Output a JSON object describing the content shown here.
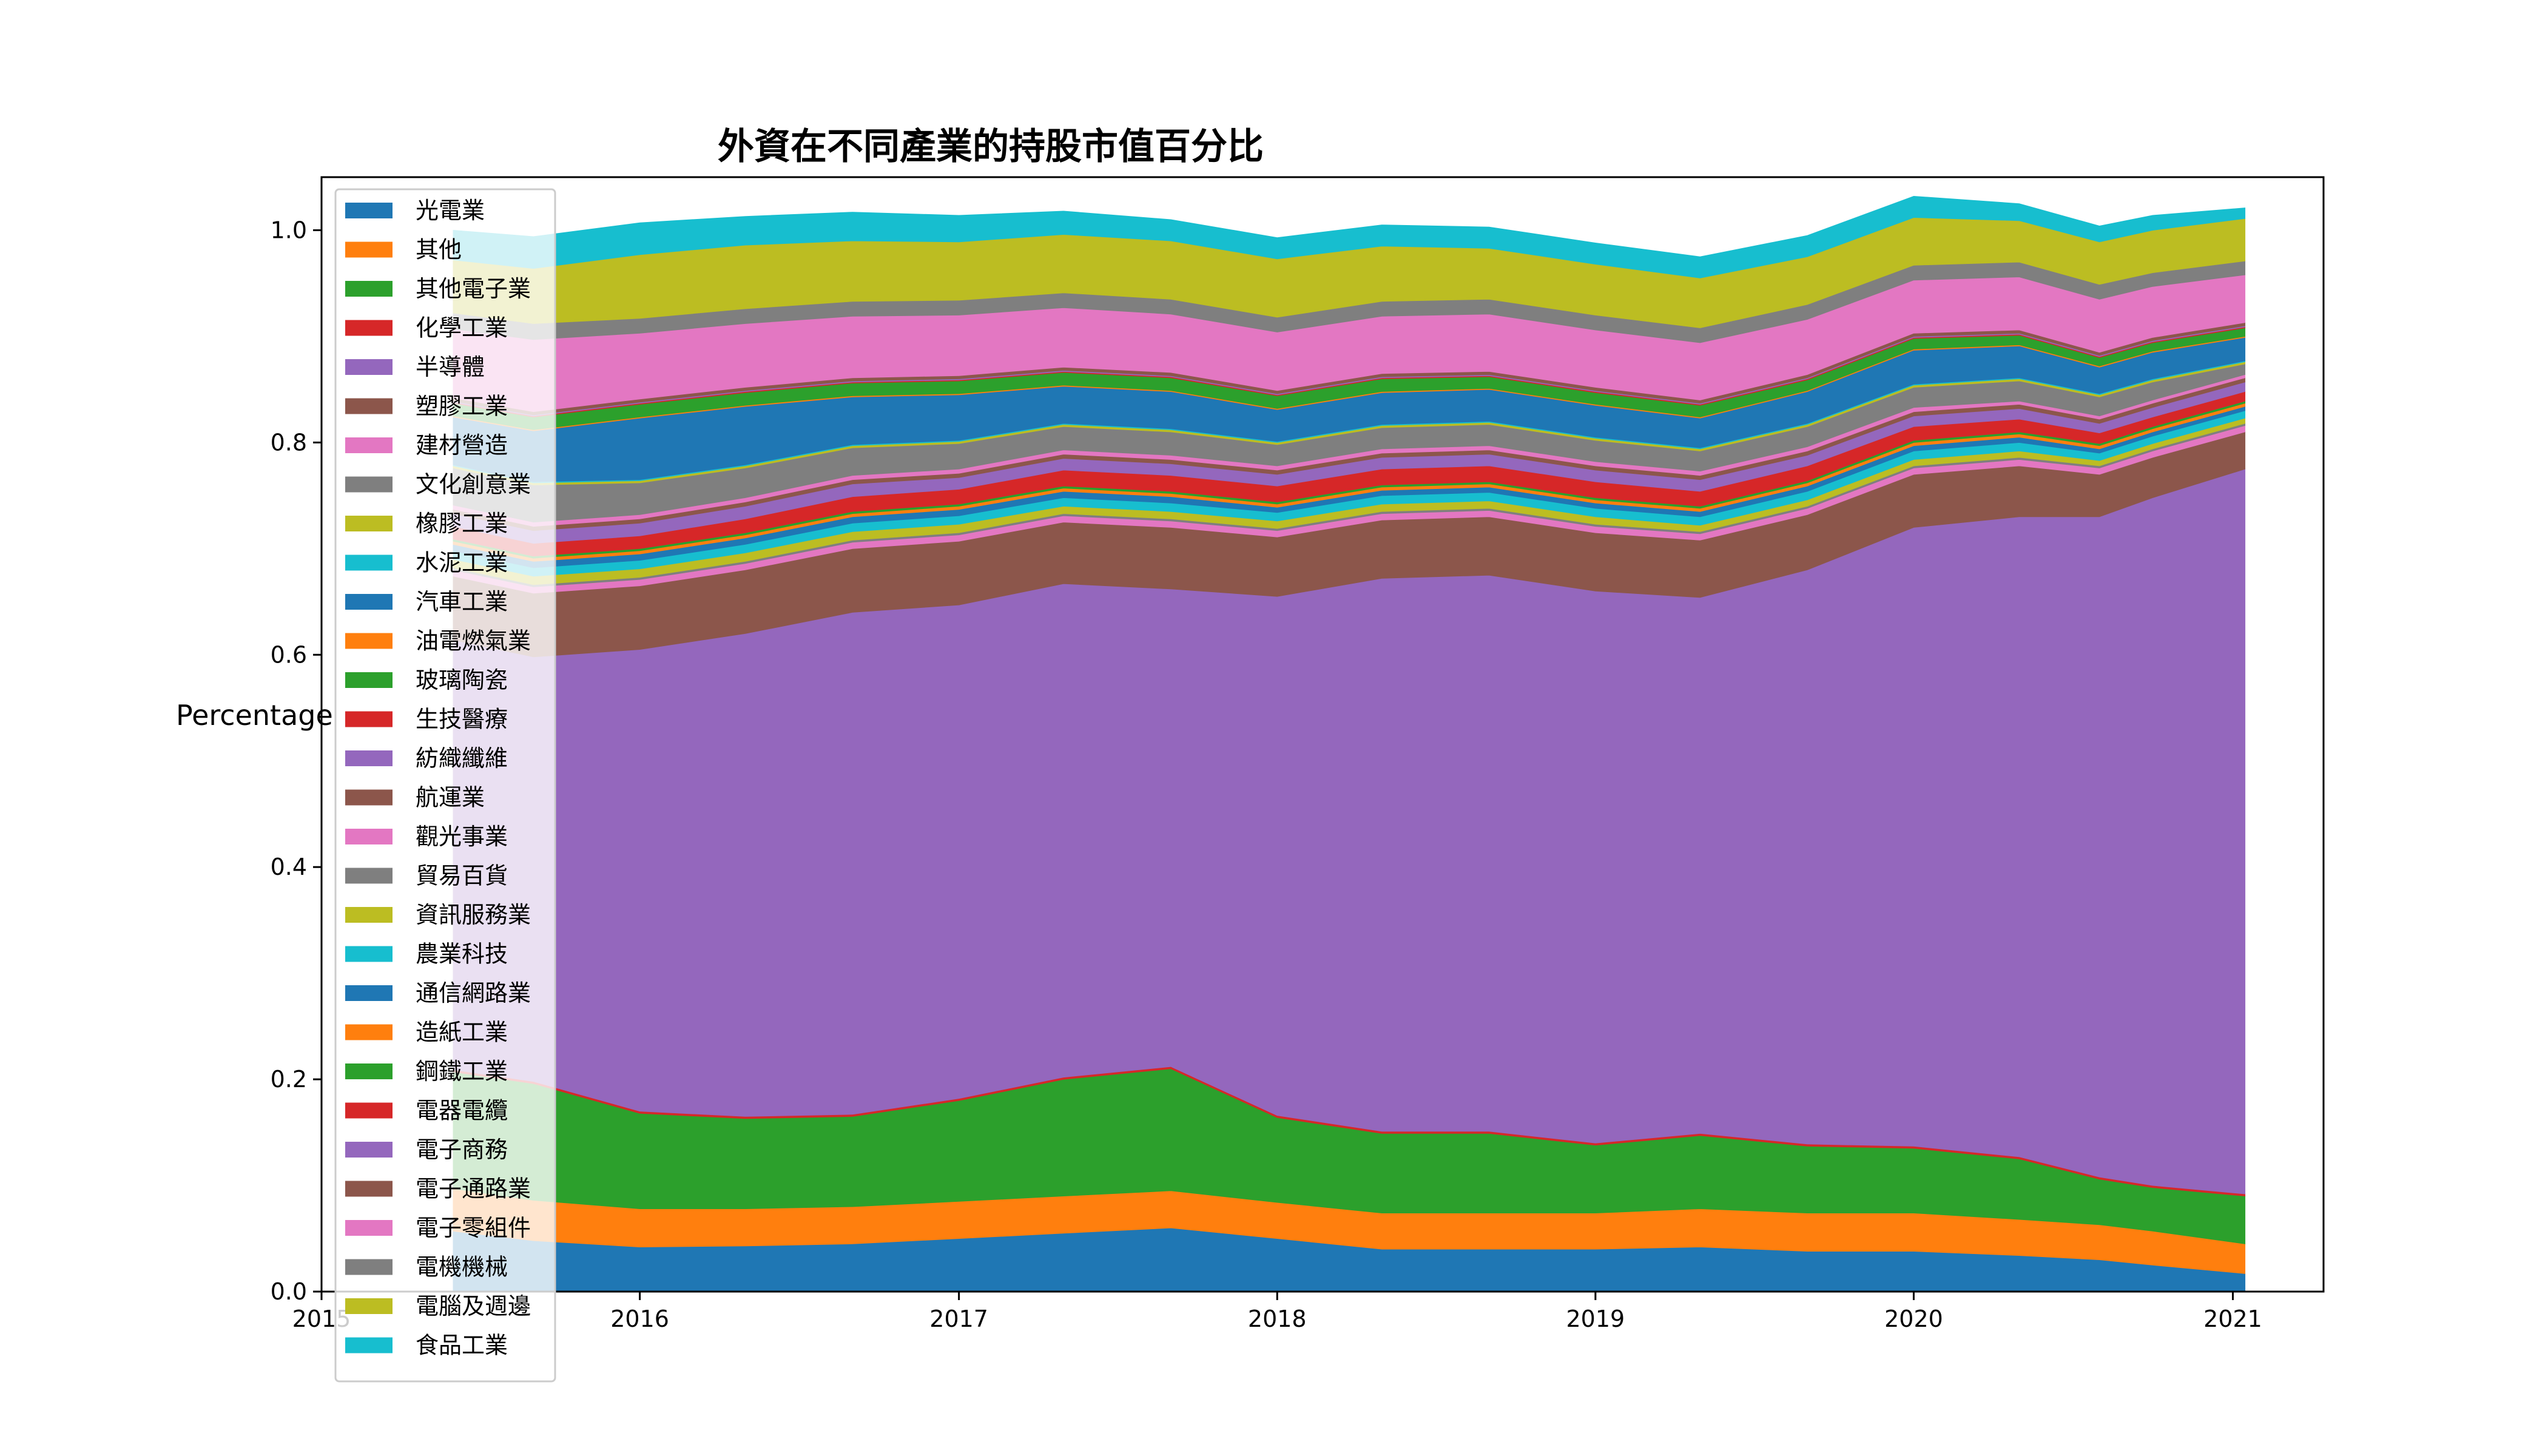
{
  "chart_data": {
    "type": "area",
    "stacked": true,
    "title": "外資在不同產業的持股市值百分比",
    "xlabel": "",
    "ylabel": "Percentage",
    "x": [
      "2015-06-01",
      "2015-09-01",
      "2016-01-01",
      "2016-05-01",
      "2016-09-01",
      "2017-01-01",
      "2017-05-01",
      "2017-09-01",
      "2018-01-01",
      "2018-05-01",
      "2018-09-01",
      "2019-01-01",
      "2019-05-01",
      "2019-09-01",
      "2020-01-01",
      "2020-05-01",
      "2020-08-01",
      "2020-10-01",
      "2021-01-15"
    ],
    "xlim": [
      "2015-01-01",
      "2021-04-15"
    ],
    "ylim": [
      0,
      1.05
    ],
    "xticks": [
      "2015",
      "2016",
      "2017",
      "2018",
      "2019",
      "2020",
      "2021"
    ],
    "yticks": [
      "0.0",
      "0.2",
      "0.4",
      "0.6",
      "0.8",
      "1.0"
    ],
    "legend_position": "upper-left",
    "series": [
      {
        "name": "光電業",
        "color": "#1f77b4",
        "values": [
          0.057,
          0.048,
          0.042,
          0.043,
          0.045,
          0.05,
          0.055,
          0.06,
          0.05,
          0.04,
          0.04,
          0.04,
          0.042,
          0.038,
          0.038,
          0.034,
          0.03,
          0.025,
          0.017
        ]
      },
      {
        "name": "其他",
        "color": "#ff7f0e",
        "values": [
          0.04,
          0.038,
          0.036,
          0.035,
          0.035,
          0.035,
          0.035,
          0.035,
          0.034,
          0.034,
          0.034,
          0.034,
          0.036,
          0.036,
          0.036,
          0.034,
          0.033,
          0.032,
          0.028
        ]
      },
      {
        "name": "其他電子業",
        "color": "#2ca02c",
        "values": [
          0.11,
          0.11,
          0.09,
          0.085,
          0.085,
          0.095,
          0.11,
          0.115,
          0.08,
          0.075,
          0.075,
          0.064,
          0.069,
          0.063,
          0.061,
          0.057,
          0.043,
          0.041,
          0.045
        ]
      },
      {
        "name": "化學工業",
        "color": "#d62728",
        "values": [
          0.002,
          0.002,
          0.002,
          0.002,
          0.002,
          0.002,
          0.002,
          0.002,
          0.002,
          0.002,
          0.002,
          0.002,
          0.002,
          0.002,
          0.002,
          0.002,
          0.002,
          0.002,
          0.002
        ]
      },
      {
        "name": "半導體",
        "color": "#9467bd",
        "values": [
          0.405,
          0.4,
          0.435,
          0.455,
          0.473,
          0.465,
          0.465,
          0.45,
          0.489,
          0.521,
          0.524,
          0.52,
          0.505,
          0.541,
          0.583,
          0.603,
          0.622,
          0.648,
          0.683
        ]
      },
      {
        "name": "塑膠工業",
        "color": "#8c564b",
        "values": [
          0.06,
          0.06,
          0.06,
          0.06,
          0.06,
          0.06,
          0.058,
          0.058,
          0.056,
          0.055,
          0.055,
          0.055,
          0.054,
          0.052,
          0.05,
          0.048,
          0.04,
          0.038,
          0.035
        ]
      },
      {
        "name": "建材營造",
        "color": "#e377c2",
        "values": [
          0.006,
          0.006,
          0.006,
          0.006,
          0.006,
          0.006,
          0.006,
          0.006,
          0.006,
          0.006,
          0.006,
          0.006,
          0.006,
          0.006,
          0.006,
          0.006,
          0.006,
          0.006,
          0.006
        ]
      },
      {
        "name": "文化創意業",
        "color": "#7f7f7f",
        "values": [
          0.002,
          0.002,
          0.002,
          0.002,
          0.002,
          0.002,
          0.002,
          0.002,
          0.002,
          0.002,
          0.002,
          0.002,
          0.002,
          0.002,
          0.002,
          0.002,
          0.002,
          0.002,
          0.002
        ]
      },
      {
        "name": "橡膠工業",
        "color": "#bcbd22",
        "values": [
          0.008,
          0.008,
          0.008,
          0.008,
          0.008,
          0.008,
          0.007,
          0.007,
          0.007,
          0.007,
          0.007,
          0.007,
          0.006,
          0.006,
          0.006,
          0.006,
          0.005,
          0.005,
          0.005
        ]
      },
      {
        "name": "水泥工業",
        "color": "#17becf",
        "values": [
          0.008,
          0.008,
          0.008,
          0.008,
          0.008,
          0.008,
          0.008,
          0.008,
          0.008,
          0.008,
          0.008,
          0.008,
          0.008,
          0.008,
          0.008,
          0.008,
          0.007,
          0.007,
          0.007
        ]
      },
      {
        "name": "汽車工業",
        "color": "#1f77b4",
        "values": [
          0.006,
          0.006,
          0.006,
          0.006,
          0.006,
          0.006,
          0.006,
          0.006,
          0.005,
          0.005,
          0.005,
          0.005,
          0.005,
          0.005,
          0.005,
          0.005,
          0.004,
          0.004,
          0.004
        ]
      },
      {
        "name": "油電燃氣業",
        "color": "#ff7f0e",
        "values": [
          0.003,
          0.003,
          0.003,
          0.003,
          0.003,
          0.003,
          0.003,
          0.003,
          0.003,
          0.003,
          0.003,
          0.003,
          0.003,
          0.003,
          0.003,
          0.003,
          0.003,
          0.003,
          0.003
        ]
      },
      {
        "name": "玻璃陶瓷",
        "color": "#2ca02c",
        "values": [
          0.002,
          0.002,
          0.002,
          0.002,
          0.002,
          0.002,
          0.002,
          0.002,
          0.002,
          0.002,
          0.002,
          0.002,
          0.002,
          0.002,
          0.002,
          0.002,
          0.002,
          0.002,
          0.002
        ]
      },
      {
        "name": "生技醫療",
        "color": "#d62728",
        "values": [
          0.012,
          0.012,
          0.012,
          0.013,
          0.014,
          0.014,
          0.015,
          0.015,
          0.015,
          0.015,
          0.015,
          0.015,
          0.014,
          0.014,
          0.013,
          0.012,
          0.01,
          0.009,
          0.009
        ]
      },
      {
        "name": "紡織纖維",
        "color": "#9467bd",
        "values": [
          0.012,
          0.012,
          0.012,
          0.012,
          0.012,
          0.011,
          0.011,
          0.011,
          0.011,
          0.011,
          0.011,
          0.011,
          0.011,
          0.01,
          0.01,
          0.01,
          0.009,
          0.009,
          0.009
        ]
      },
      {
        "name": "航運業",
        "color": "#8c564b",
        "values": [
          0.004,
          0.004,
          0.004,
          0.004,
          0.004,
          0.004,
          0.004,
          0.004,
          0.004,
          0.004,
          0.004,
          0.004,
          0.004,
          0.004,
          0.004,
          0.004,
          0.004,
          0.004,
          0.004
        ]
      },
      {
        "name": "觀光事業",
        "color": "#e377c2",
        "values": [
          0.004,
          0.004,
          0.004,
          0.004,
          0.004,
          0.004,
          0.004,
          0.004,
          0.004,
          0.004,
          0.004,
          0.004,
          0.004,
          0.004,
          0.004,
          0.003,
          0.003,
          0.003,
          0.003
        ]
      },
      {
        "name": "貿易百貨",
        "color": "#7f7f7f",
        "values": [
          0.035,
          0.035,
          0.03,
          0.028,
          0.026,
          0.024,
          0.022,
          0.022,
          0.02,
          0.02,
          0.02,
          0.02,
          0.019,
          0.019,
          0.019,
          0.019,
          0.018,
          0.017,
          0.01
        ]
      },
      {
        "name": "資訊服務業",
        "color": "#bcbd22",
        "values": [
          0.002,
          0.002,
          0.002,
          0.002,
          0.002,
          0.002,
          0.002,
          0.002,
          0.002,
          0.002,
          0.002,
          0.002,
          0.002,
          0.002,
          0.002,
          0.002,
          0.002,
          0.002,
          0.002
        ]
      },
      {
        "name": "農業科技",
        "color": "#17becf",
        "values": [
          0.001,
          0.001,
          0.001,
          0.001,
          0.001,
          0.001,
          0.001,
          0.001,
          0.001,
          0.001,
          0.001,
          0.001,
          0.001,
          0.001,
          0.001,
          0.001,
          0.001,
          0.001,
          0.001
        ]
      },
      {
        "name": "通信網路業",
        "color": "#1f77b4",
        "values": [
          0.045,
          0.048,
          0.058,
          0.055,
          0.045,
          0.043,
          0.035,
          0.035,
          0.03,
          0.03,
          0.03,
          0.03,
          0.028,
          0.03,
          0.032,
          0.03,
          0.025,
          0.025,
          0.022
        ]
      },
      {
        "name": "造紙工業",
        "color": "#ff7f0e",
        "values": [
          0.001,
          0.001,
          0.001,
          0.001,
          0.001,
          0.001,
          0.001,
          0.001,
          0.001,
          0.001,
          0.001,
          0.001,
          0.001,
          0.001,
          0.001,
          0.001,
          0.001,
          0.001,
          0.001
        ]
      },
      {
        "name": "鋼鐵工業",
        "color": "#2ca02c",
        "values": [
          0.012,
          0.012,
          0.012,
          0.012,
          0.012,
          0.012,
          0.012,
          0.012,
          0.012,
          0.012,
          0.011,
          0.011,
          0.011,
          0.01,
          0.01,
          0.009,
          0.008,
          0.008,
          0.008
        ]
      },
      {
        "name": "電器電纜",
        "color": "#d62728",
        "values": [
          0.001,
          0.001,
          0.001,
          0.001,
          0.001,
          0.001,
          0.001,
          0.001,
          0.001,
          0.001,
          0.001,
          0.001,
          0.001,
          0.001,
          0.001,
          0.001,
          0.001,
          0.001,
          0.001
        ]
      },
      {
        "name": "電子商務",
        "color": "#9467bd",
        "values": [
          0.001,
          0.001,
          0.001,
          0.001,
          0.001,
          0.001,
          0.001,
          0.001,
          0.001,
          0.001,
          0.001,
          0.001,
          0.001,
          0.001,
          0.001,
          0.001,
          0.001,
          0.001,
          0.001
        ]
      },
      {
        "name": "電子通路業",
        "color": "#8c564b",
        "values": [
          0.003,
          0.003,
          0.003,
          0.003,
          0.003,
          0.003,
          0.003,
          0.003,
          0.003,
          0.003,
          0.003,
          0.003,
          0.003,
          0.003,
          0.003,
          0.003,
          0.003,
          0.003,
          0.003
        ]
      },
      {
        "name": "電子零組件",
        "color": "#e377c2",
        "values": [
          0.065,
          0.068,
          0.062,
          0.06,
          0.058,
          0.057,
          0.056,
          0.055,
          0.055,
          0.054,
          0.054,
          0.054,
          0.054,
          0.052,
          0.05,
          0.05,
          0.05,
          0.048,
          0.045
        ]
      },
      {
        "name": "電機機械",
        "color": "#7f7f7f",
        "values": [
          0.015,
          0.015,
          0.014,
          0.014,
          0.014,
          0.014,
          0.014,
          0.014,
          0.014,
          0.014,
          0.014,
          0.014,
          0.014,
          0.014,
          0.014,
          0.014,
          0.014,
          0.013,
          0.013
        ]
      },
      {
        "name": "電腦及週邊",
        "color": "#bcbd22",
        "values": [
          0.05,
          0.052,
          0.06,
          0.06,
          0.057,
          0.055,
          0.055,
          0.055,
          0.055,
          0.052,
          0.048,
          0.048,
          0.047,
          0.045,
          0.045,
          0.039,
          0.04,
          0.04,
          0.04
        ]
      },
      {
        "name": "食品工業",
        "color": "#17becf",
        "values": [
          0.028,
          0.03,
          0.03,
          0.027,
          0.027,
          0.025,
          0.022,
          0.02,
          0.02,
          0.02,
          0.02,
          0.02,
          0.02,
          0.02,
          0.02,
          0.016,
          0.015,
          0.014,
          0.01
        ]
      }
    ]
  }
}
